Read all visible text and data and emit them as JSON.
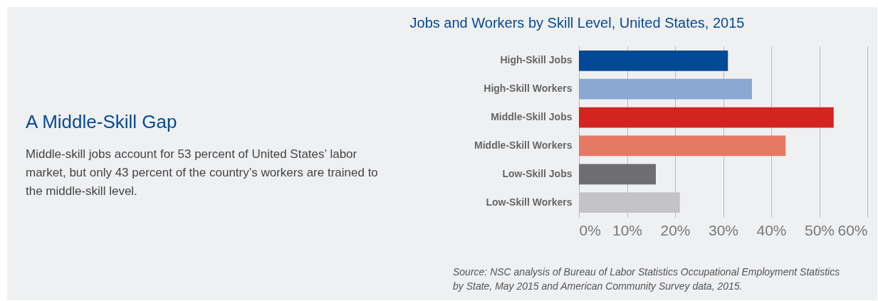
{
  "chart_data": {
    "type": "bar",
    "orientation": "horizontal",
    "title": "Jobs and Workers by Skill Level, United States, 2015",
    "categories": [
      "High-Skill Jobs",
      "High-Skill Workers",
      "Middle-Skill Jobs",
      "Middle-Skill Workers",
      "Low-Skill Jobs",
      "Low-Skill Workers"
    ],
    "values": [
      31,
      36,
      53,
      43,
      16,
      21
    ],
    "colors": [
      "#034a96",
      "#8aa8d1",
      "#d4241f",
      "#e57862",
      "#6e6e72",
      "#c4c4c6"
    ],
    "xlim": [
      0,
      60
    ],
    "xticks": [
      {
        "value": 0,
        "label": "0%"
      },
      {
        "value": 10,
        "label": "10%"
      },
      {
        "value": 20,
        "label": "20%"
      },
      {
        "value": 30,
        "label": "30%"
      },
      {
        "value": 40,
        "label": "40%"
      },
      {
        "value": 50,
        "label": "50%"
      },
      {
        "value": 60,
        "label": "60%"
      }
    ],
    "grid": "x",
    "annotations": [
      "A Middle-Skill Gap",
      "Middle-skill jobs account for 53 percent of United States’ labor market, but only 43 percent of the country’s workers are trained to the middle-skill level.",
      "Source: NSC analysis of Bureau of Labor Statistics Occupational Employment Statistics by State, May 2015 and American Community Survey data, 2015."
    ]
  }
}
